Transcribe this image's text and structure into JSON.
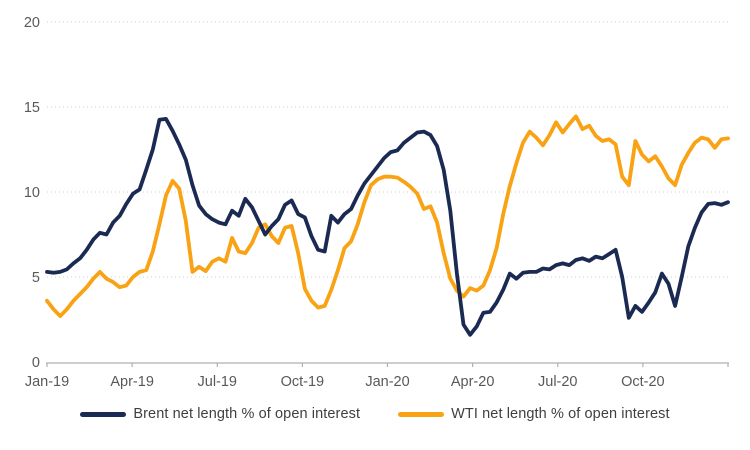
{
  "chart_data": {
    "type": "line",
    "title": "",
    "xlabel": "",
    "ylabel": "",
    "ylim": [
      0,
      20
    ],
    "y_ticks": [
      0,
      5,
      10,
      15,
      20
    ],
    "x_tick_labels": [
      "Jan-19",
      "Apr-19",
      "Jul-19",
      "Oct-19",
      "Jan-20",
      "Apr-20",
      "Jul-20",
      "Oct-20"
    ],
    "x_frequency": "weekly",
    "grid": "horizontal-dotted",
    "legend_position": "bottom",
    "colors": {
      "brent": "#1b2a52",
      "wti": "#f9a213",
      "gridline": "#cfcfcf",
      "axis_line": "#b0b0b0",
      "tick_text": "#595959"
    },
    "series": [
      {
        "name": "Brent net length % of open interest",
        "color": "#1b2a52",
        "values": [
          5.3,
          5.25,
          5.3,
          5.45,
          5.8,
          6.1,
          6.6,
          7.2,
          7.6,
          7.5,
          8.2,
          8.6,
          9.3,
          9.9,
          10.15,
          11.3,
          12.5,
          14.25,
          14.3,
          13.6,
          12.8,
          11.9,
          10.4,
          9.2,
          8.7,
          8.4,
          8.2,
          8.1,
          8.9,
          8.6,
          9.6,
          9.1,
          8.3,
          7.5,
          8.0,
          8.4,
          9.25,
          9.5,
          8.7,
          8.5,
          7.4,
          6.6,
          6.5,
          8.6,
          8.2,
          8.7,
          9.0,
          9.8,
          10.5,
          11.0,
          11.5,
          12.0,
          12.35,
          12.45,
          12.9,
          13.2,
          13.5,
          13.55,
          13.35,
          12.7,
          11.3,
          8.9,
          5.2,
          2.2,
          1.6,
          2.1,
          2.9,
          2.95,
          3.5,
          4.25,
          5.2,
          4.9,
          5.25,
          5.3,
          5.3,
          5.5,
          5.45,
          5.7,
          5.8,
          5.7,
          6.0,
          6.1,
          5.95,
          6.2,
          6.1,
          6.35,
          6.6,
          5.0,
          2.6,
          3.3,
          2.95,
          3.5,
          4.1,
          5.2,
          4.6,
          3.3,
          5.0,
          6.8,
          7.9,
          8.8,
          9.3,
          9.35,
          9.25,
          9.4
        ]
      },
      {
        "name": "WTI net length % of open interest",
        "color": "#f9a213",
        "values": [
          3.6,
          3.1,
          2.7,
          3.1,
          3.6,
          4.0,
          4.4,
          4.9,
          5.3,
          4.9,
          4.7,
          4.4,
          4.5,
          5.0,
          5.3,
          5.4,
          6.5,
          8.1,
          9.8,
          10.65,
          10.2,
          8.3,
          5.3,
          5.6,
          5.35,
          5.9,
          6.1,
          5.9,
          7.3,
          6.5,
          6.4,
          7.0,
          7.9,
          8.1,
          7.4,
          7.0,
          7.9,
          8.0,
          6.4,
          4.3,
          3.6,
          3.2,
          3.3,
          4.25,
          5.4,
          6.7,
          7.1,
          8.1,
          9.4,
          10.4,
          10.75,
          10.9,
          10.9,
          10.85,
          10.6,
          10.3,
          9.9,
          9.0,
          9.15,
          8.2,
          6.4,
          4.9,
          4.2,
          3.85,
          4.35,
          4.2,
          4.5,
          5.4,
          6.7,
          8.7,
          10.35,
          11.7,
          12.9,
          13.55,
          13.2,
          12.75,
          13.35,
          14.1,
          13.5,
          14.0,
          14.45,
          13.7,
          13.9,
          13.3,
          13.0,
          13.1,
          12.8,
          10.9,
          10.4,
          13.0,
          12.2,
          11.8,
          12.1,
          11.5,
          10.8,
          10.4,
          11.6,
          12.3,
          12.9,
          13.2,
          13.1,
          12.6,
          13.1,
          13.15
        ]
      }
    ]
  },
  "legend": {
    "brent_label": "Brent net length % of open interest",
    "wti_label": "WTI net length % of open interest"
  }
}
